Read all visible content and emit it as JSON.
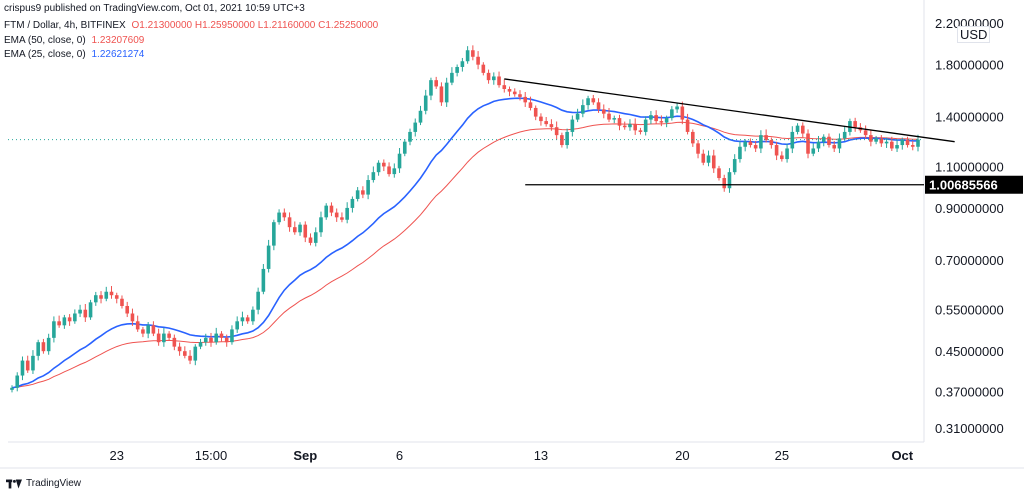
{
  "header": {
    "publisher_line": "crispus9 published on TradingView.com, Oct 01, 2021 10:59 UTC+3",
    "symbol": "FTM / Dollar, 4h, BITFINEX",
    "ohlc": "O1.21300000 H1.25950000 L1.21160000 C1.25250000",
    "ema50_label": "EMA (50, close, 0)",
    "ema50_value": "1.23207609",
    "ema25_label": "EMA (25, close, 0)",
    "ema25_value": "1.22621274"
  },
  "currency_label": "USD",
  "footer": {
    "brand": "TradingView"
  },
  "colors": {
    "up": "#26a69a",
    "down": "#ef5350",
    "ema50": "#ef5350",
    "ema25": "#2962ff",
    "trendline": "#000000",
    "price_line": "#26a69a"
  },
  "chart_data": {
    "type": "candlestick",
    "scale": "log",
    "ylim": [
      0.29,
      2.3
    ],
    "y_ticks": [
      {
        "v": 2.2,
        "label": "2.20000000"
      },
      {
        "v": 1.8,
        "label": "1.80000000"
      },
      {
        "v": 1.4,
        "label": "1.40000000"
      },
      {
        "v": 1.1,
        "label": "1.10000000"
      },
      {
        "v": 0.9,
        "label": "0.90000000"
      },
      {
        "v": 0.7,
        "label": "0.70000000"
      },
      {
        "v": 0.55,
        "label": "0.55000000"
      },
      {
        "v": 0.45,
        "label": "0.45000000"
      },
      {
        "v": 0.37,
        "label": "0.37000000"
      },
      {
        "v": 0.31,
        "label": "0.31000000"
      }
    ],
    "x_ticks": [
      {
        "i": 20,
        "label": "23"
      },
      {
        "i": 38,
        "label": "15:00"
      },
      {
        "i": 56,
        "label": "Sep"
      },
      {
        "i": 74,
        "label": "6"
      },
      {
        "i": 101,
        "label": "13"
      },
      {
        "i": 128,
        "label": "20"
      },
      {
        "i": 147,
        "label": "25"
      },
      {
        "i": 170,
        "label": "Oct"
      }
    ],
    "price_marker": {
      "v": 1.00685566,
      "label": "1.00685566"
    },
    "support_line": {
      "i0": 98,
      "i1": 180,
      "v": 1.00685566
    },
    "resistance_line": {
      "i0": 94,
      "i1": 180,
      "v0": 1.68,
      "v1": 1.24
    },
    "last_price": 1.2525,
    "series": [
      {
        "name": "FTM / Dollar",
        "close": [
          0.377,
          0.4,
          0.43,
          0.41,
          0.44,
          0.47,
          0.45,
          0.48,
          0.52,
          0.51,
          0.53,
          0.52,
          0.54,
          0.55,
          0.53,
          0.57,
          0.59,
          0.58,
          0.6,
          0.59,
          0.58,
          0.56,
          0.54,
          0.52,
          0.5,
          0.49,
          0.51,
          0.49,
          0.47,
          0.49,
          0.48,
          0.46,
          0.45,
          0.44,
          0.43,
          0.46,
          0.47,
          0.48,
          0.47,
          0.49,
          0.48,
          0.47,
          0.5,
          0.52,
          0.53,
          0.52,
          0.55,
          0.6,
          0.67,
          0.75,
          0.84,
          0.88,
          0.86,
          0.82,
          0.8,
          0.83,
          0.78,
          0.76,
          0.8,
          0.86,
          0.91,
          0.88,
          0.86,
          0.85,
          0.9,
          0.94,
          0.98,
          0.96,
          1.03,
          1.07,
          1.12,
          1.1,
          1.06,
          1.09,
          1.17,
          1.24,
          1.3,
          1.36,
          1.44,
          1.55,
          1.67,
          1.62,
          1.5,
          1.65,
          1.73,
          1.78,
          1.83,
          1.93,
          1.87,
          1.8,
          1.73,
          1.67,
          1.7,
          1.63,
          1.6,
          1.58,
          1.56,
          1.54,
          1.5,
          1.46,
          1.4,
          1.37,
          1.35,
          1.33,
          1.28,
          1.22,
          1.3,
          1.38,
          1.42,
          1.48,
          1.53,
          1.5,
          1.45,
          1.42,
          1.38,
          1.39,
          1.34,
          1.33,
          1.35,
          1.31,
          1.3,
          1.38,
          1.41,
          1.37,
          1.36,
          1.39,
          1.45,
          1.47,
          1.38,
          1.3,
          1.23,
          1.17,
          1.12,
          1.16,
          1.09,
          1.04,
          0.99,
          1.07,
          1.14,
          1.21,
          1.24,
          1.22,
          1.2,
          1.28,
          1.25,
          1.22,
          1.16,
          1.14,
          1.2,
          1.3,
          1.34,
          1.29,
          1.17,
          1.2,
          1.24,
          1.27,
          1.22,
          1.2,
          1.26,
          1.3,
          1.37,
          1.33,
          1.31,
          1.28,
          1.24,
          1.26,
          1.23,
          1.24,
          1.2,
          1.22,
          1.25,
          1.22,
          1.21,
          1.2525
        ]
      },
      {
        "name": "EMA (50, close, 0)",
        "value": 1.23207609
      },
      {
        "name": "EMA (25, close, 0)",
        "value": 1.22621274
      }
    ]
  }
}
